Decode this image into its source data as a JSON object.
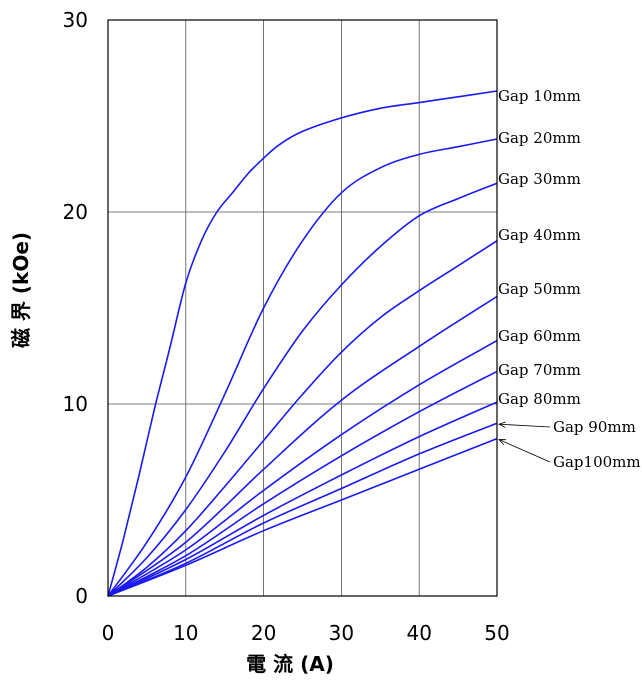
{
  "chart_data": {
    "type": "line",
    "xlabel": "電 流 (A)",
    "ylabel": "磁 界 (kOe)",
    "xlim": [
      0,
      50
    ],
    "ylim": [
      0,
      30
    ],
    "x_ticks": [
      "0",
      "10",
      "20",
      "30",
      "40",
      "50"
    ],
    "y_ticks": [
      "0",
      "10",
      "20",
      "30"
    ],
    "grid": true,
    "line_color": "#1a1aee",
    "series": [
      {
        "name": "Gap  10mm",
        "x": [
          0,
          2,
          4,
          6,
          8,
          10,
          12,
          14,
          16,
          18,
          20,
          22,
          25,
          30,
          35,
          40,
          45,
          50
        ],
        "y": [
          0,
          3.0,
          6.3,
          9.8,
          13.0,
          16.3,
          18.5,
          20.0,
          21.0,
          22.0,
          22.8,
          23.5,
          24.2,
          24.9,
          25.4,
          25.7,
          26.0,
          26.3
        ]
      },
      {
        "name": "Gap 20mm",
        "x": [
          0,
          5,
          10,
          15,
          20,
          25,
          30,
          35,
          40,
          45,
          50
        ],
        "y": [
          0,
          2.8,
          6.2,
          10.5,
          15.0,
          18.5,
          21.0,
          22.3,
          23.0,
          23.4,
          23.8
        ]
      },
      {
        "name": "Gap 30mm",
        "x": [
          0,
          5,
          10,
          15,
          20,
          25,
          30,
          35,
          40,
          45,
          50
        ],
        "y": [
          0,
          2.0,
          4.5,
          7.5,
          10.8,
          13.8,
          16.2,
          18.2,
          19.8,
          20.7,
          21.5
        ]
      },
      {
        "name": "Gap 40mm",
        "x": [
          0,
          5,
          10,
          15,
          20,
          25,
          30,
          35,
          40,
          45,
          50
        ],
        "y": [
          0,
          1.5,
          3.4,
          5.7,
          8.1,
          10.5,
          12.7,
          14.5,
          15.9,
          17.2,
          18.5
        ]
      },
      {
        "name": "Gap 50mm",
        "x": [
          0,
          10,
          20,
          30,
          40,
          50
        ],
        "y": [
          0,
          2.8,
          6.6,
          10.2,
          13.0,
          15.6
        ]
      },
      {
        "name": "Gap 60mm",
        "x": [
          0,
          10,
          20,
          30,
          40,
          50
        ],
        "y": [
          0,
          2.4,
          5.5,
          8.4,
          11.0,
          13.3
        ]
      },
      {
        "name": "Gap 70mm",
        "x": [
          0,
          10,
          20,
          30,
          40,
          50
        ],
        "y": [
          0,
          2.1,
          4.8,
          7.3,
          9.6,
          11.7
        ]
      },
      {
        "name": "Gap 80mm",
        "x": [
          0,
          10,
          20,
          30,
          40,
          50
        ],
        "y": [
          0,
          1.9,
          4.2,
          6.3,
          8.3,
          10.1
        ]
      },
      {
        "name": "Gap 90mm",
        "x": [
          0,
          10,
          20,
          30,
          40,
          50
        ],
        "y": [
          0,
          1.7,
          3.8,
          5.6,
          7.4,
          9.0
        ]
      },
      {
        "name": "Gap100mm",
        "x": [
          0,
          10,
          20,
          30,
          40,
          50
        ],
        "y": [
          0,
          1.6,
          3.4,
          5.0,
          6.6,
          8.2
        ]
      }
    ]
  }
}
